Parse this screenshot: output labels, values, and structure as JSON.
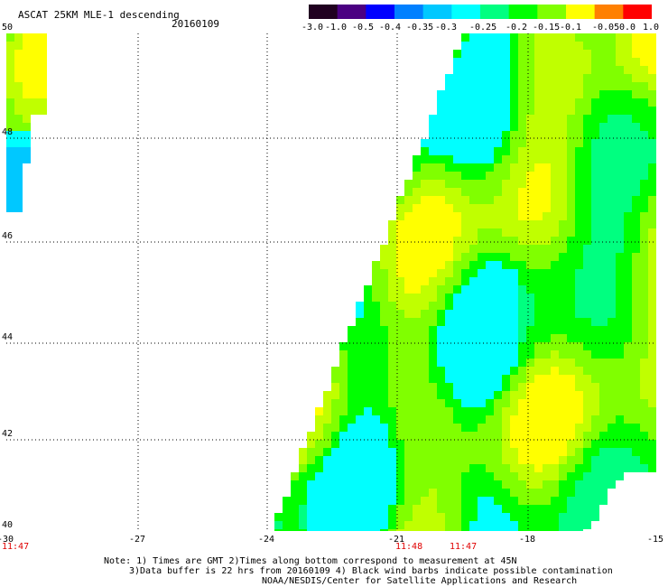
{
  "header": {
    "title": "ASCAT 25KM MLE-1 descending",
    "date": "20160109"
  },
  "colorbar": {
    "ticks": [
      "-3.0",
      "-1.0",
      "-0.5",
      "-0.4",
      "-0.35",
      "-0.3",
      "-0.25",
      "-0.2",
      "-0.15",
      "-0.1",
      "-0.05",
      "0.0",
      "1.0"
    ],
    "colors": [
      "#200020",
      "#4b0082",
      "#0000ff",
      "#0080ff",
      "#00c8ff",
      "#00ffff",
      "#00ff80",
      "#00ff00",
      "#80ff00",
      "#ffff00",
      "#ff8000",
      "#ff0000"
    ]
  },
  "axes": {
    "lat_labels": [
      "50",
      "48",
      "46",
      "44",
      "42",
      "40"
    ],
    "lon_labels": [
      "-30",
      "-27",
      "-24",
      "-21",
      "-18",
      "-15"
    ],
    "times": [
      "11:47",
      "11:48",
      "11:47"
    ]
  },
  "notes": {
    "line1": "Note: 1) Times are GMT 2)Times along bottom correspond to measurement at 45N",
    "line2": "3)Data buffer is 22 hrs from 20160109 4) Black wind barbs indicate possible contamination",
    "line3": "NOAA/NESDIS/Center for Satellite Applications and Research"
  }
}
